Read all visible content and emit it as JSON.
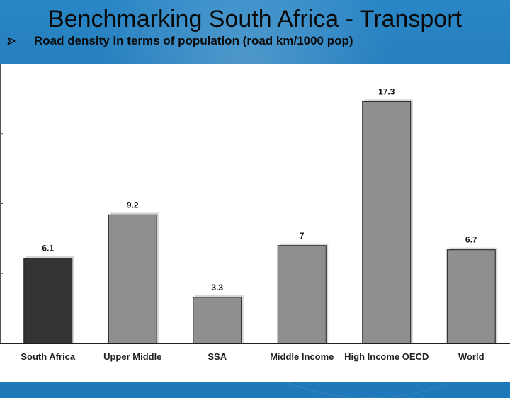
{
  "slide": {
    "title": "Benchmarking South Africa - Transport",
    "bullet_icon": "arrow-bullet-icon",
    "subtitle": "Road density in terms of population (road km/1000 pop)"
  },
  "colors": {
    "background": "#1f78b9",
    "plot_background": "#ffffff",
    "highlight_bar": "#333333",
    "bar": "#8f8f8f"
  },
  "chart_data": {
    "type": "bar",
    "categories": [
      "South Africa",
      "Upper Middle",
      "SSA",
      "Middle Income",
      "High Income OECD",
      "World"
    ],
    "values": [
      6.1,
      9.2,
      3.3,
      7,
      17.3,
      6.7
    ],
    "value_labels": [
      "6.1",
      "9.2",
      "3.3",
      "7",
      "17.3",
      "6.7"
    ],
    "highlight_index": 0,
    "ylim": [
      0,
      20
    ],
    "title": "",
    "xlabel": "",
    "ylabel": "",
    "grid": false,
    "legend": "none"
  }
}
